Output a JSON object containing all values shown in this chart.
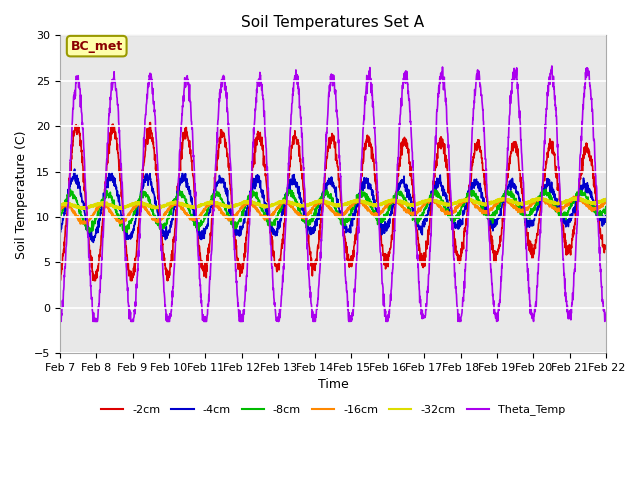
{
  "title": "Soil Temperatures Set A",
  "xlabel": "Time",
  "ylabel": "Soil Temperature (C)",
  "ylim": [
    -5,
    30
  ],
  "annotation": "BC_met",
  "series": {
    "-2cm": {
      "color": "#dd0000",
      "lw": 1.2
    },
    "-4cm": {
      "color": "#0000cc",
      "lw": 1.2
    },
    "-8cm": {
      "color": "#00bb00",
      "lw": 1.2
    },
    "-16cm": {
      "color": "#ff8800",
      "lw": 1.5
    },
    "-32cm": {
      "color": "#dddd00",
      "lw": 2.0
    },
    "Theta_Temp": {
      "color": "#aa00ee",
      "lw": 1.2
    }
  },
  "legend_order": [
    "-2cm",
    "-4cm",
    "-8cm",
    "-16cm",
    "-32cm",
    "Theta_Temp"
  ],
  "xtick_labels": [
    "Feb 7",
    "Feb 8",
    "Feb 9",
    "Feb 10",
    "Feb 11",
    "Feb 12",
    "Feb 13",
    "Feb 14",
    "Feb 15",
    "Feb 16",
    "Feb 17",
    "Feb 18",
    "Feb 19",
    "Feb 20",
    "Feb 21",
    "Feb 22"
  ],
  "plot_bg": "#e8e8e8",
  "grid_color": "#ffffff",
  "n_days": 15,
  "pts_per_day": 144
}
